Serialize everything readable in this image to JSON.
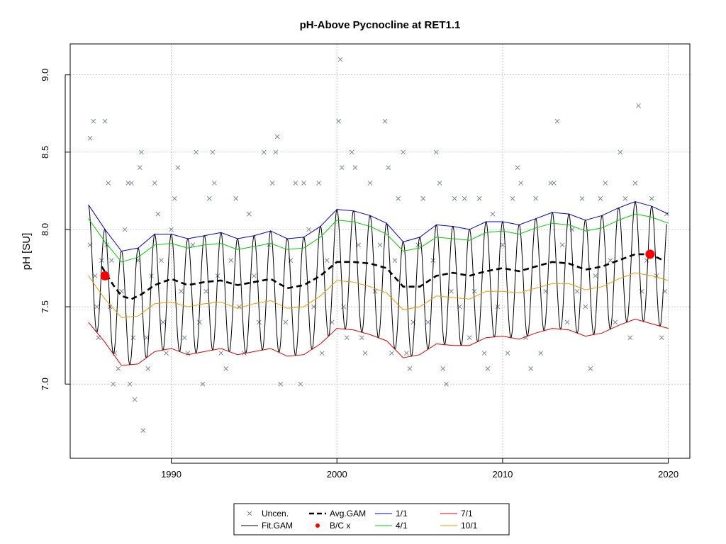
{
  "chart_data": {
    "type": "scatter",
    "title": "pH-Above Pycnocline at RET1.1",
    "xlabel": "",
    "ylabel": "pH [SU]",
    "xlim": [
      1983.9,
      2021.3
    ],
    "ylim": [
      6.52,
      9.2
    ],
    "x_ticks": [
      1990,
      2000,
      2010,
      2020
    ],
    "y_ticks": [
      7.0,
      7.5,
      8.0,
      8.5,
      9.0
    ],
    "grid": true,
    "legend_position": "bottom",
    "colors": {
      "uncen": "#7a8699",
      "fit": "#000000",
      "avg": "#000000",
      "bc": "#ff0000",
      "jan1": "#0000cc",
      "apr1": "#00cc00",
      "jul1": "#dd0000",
      "oct1": "#ee9900"
    },
    "legend": [
      {
        "key": "uncen",
        "label": "Uncen.",
        "symbol": "cross"
      },
      {
        "key": "avg",
        "label": "Avg.GAM",
        "symbol": "dash"
      },
      {
        "key": "jan1",
        "label": "1/1",
        "symbol": "line"
      },
      {
        "key": "jul1",
        "label": "7/1",
        "symbol": "line"
      },
      {
        "key": "fit",
        "label": "Fit.GAM",
        "symbol": "line"
      },
      {
        "key": "bc",
        "label": "B/C x",
        "symbol": "dot"
      },
      {
        "key": "apr1",
        "label": "4/1",
        "symbol": "line"
      },
      {
        "key": "oct1",
        "label": "10/1",
        "symbol": "line"
      }
    ],
    "bc_points": [
      [
        1986.0,
        7.7
      ],
      [
        2018.9,
        7.84
      ]
    ],
    "avg_gam": [
      [
        1985.8,
        7.76
      ],
      [
        1986.5,
        7.64
      ],
      [
        1987.0,
        7.57
      ],
      [
        1987.6,
        7.55
      ],
      [
        1988.2,
        7.58
      ],
      [
        1989.0,
        7.64
      ],
      [
        1990.0,
        7.68
      ],
      [
        1991.0,
        7.64
      ],
      [
        1992.0,
        7.66
      ],
      [
        1993.0,
        7.67
      ],
      [
        1994.0,
        7.64
      ],
      [
        1995.0,
        7.66
      ],
      [
        1996.0,
        7.68
      ],
      [
        1997.0,
        7.62
      ],
      [
        1998.0,
        7.64
      ],
      [
        1999.0,
        7.7
      ],
      [
        2000.0,
        7.79
      ],
      [
        2001.0,
        7.79
      ],
      [
        2002.0,
        7.78
      ],
      [
        2003.0,
        7.75
      ],
      [
        2004.0,
        7.63
      ],
      [
        2005.0,
        7.63
      ],
      [
        2006.0,
        7.7
      ],
      [
        2007.0,
        7.72
      ],
      [
        2008.0,
        7.7
      ],
      [
        2009.0,
        7.73
      ],
      [
        2010.0,
        7.75
      ],
      [
        2011.0,
        7.73
      ],
      [
        2012.0,
        7.76
      ],
      [
        2013.0,
        7.79
      ],
      [
        2014.0,
        7.78
      ],
      [
        2015.0,
        7.74
      ],
      [
        2016.0,
        7.76
      ],
      [
        2017.0,
        7.8
      ],
      [
        2018.0,
        7.84
      ],
      [
        2018.9,
        7.84
      ],
      [
        2019.7,
        7.8
      ]
    ],
    "jan1": [
      [
        1985.0,
        8.16
      ],
      [
        1986.0,
        8.0
      ],
      [
        1987.0,
        7.86
      ],
      [
        1988.0,
        7.88
      ],
      [
        1989.0,
        7.97
      ],
      [
        1990.0,
        7.97
      ],
      [
        1991.0,
        7.94
      ],
      [
        1992.0,
        7.96
      ],
      [
        1993.0,
        7.98
      ],
      [
        1994.0,
        7.94
      ],
      [
        1995.0,
        7.96
      ],
      [
        1996.0,
        7.99
      ],
      [
        1997.0,
        7.94
      ],
      [
        1998.0,
        7.95
      ],
      [
        1999.0,
        8.02
      ],
      [
        2000.0,
        8.13
      ],
      [
        2001.0,
        8.12
      ],
      [
        2002.0,
        8.09
      ],
      [
        2003.0,
        8.04
      ],
      [
        2004.0,
        7.92
      ],
      [
        2005.0,
        7.95
      ],
      [
        2006.0,
        8.03
      ],
      [
        2007.0,
        8.02
      ],
      [
        2008.0,
        8.0
      ],
      [
        2009.0,
        8.05
      ],
      [
        2010.0,
        8.05
      ],
      [
        2011.0,
        8.03
      ],
      [
        2012.0,
        8.07
      ],
      [
        2013.0,
        8.11
      ],
      [
        2014.0,
        8.1
      ],
      [
        2015.0,
        8.06
      ],
      [
        2016.0,
        8.09
      ],
      [
        2017.0,
        8.14
      ],
      [
        2018.0,
        8.18
      ],
      [
        2019.0,
        8.15
      ],
      [
        2020.0,
        8.1
      ]
    ],
    "apr1": [
      [
        1985.0,
        8.07
      ],
      [
        1986.0,
        7.92
      ],
      [
        1987.0,
        7.79
      ],
      [
        1988.0,
        7.82
      ],
      [
        1989.0,
        7.9
      ],
      [
        1990.0,
        7.91
      ],
      [
        1991.0,
        7.88
      ],
      [
        1992.0,
        7.9
      ],
      [
        1993.0,
        7.91
      ],
      [
        1994.0,
        7.87
      ],
      [
        1995.0,
        7.89
      ],
      [
        1996.0,
        7.91
      ],
      [
        1997.0,
        7.87
      ],
      [
        1998.0,
        7.88
      ],
      [
        1999.0,
        7.95
      ],
      [
        2000.0,
        8.06
      ],
      [
        2001.0,
        8.05
      ],
      [
        2002.0,
        8.02
      ],
      [
        2003.0,
        7.97
      ],
      [
        2004.0,
        7.86
      ],
      [
        2005.0,
        7.88
      ],
      [
        2006.0,
        7.95
      ],
      [
        2007.0,
        7.94
      ],
      [
        2008.0,
        7.93
      ],
      [
        2009.0,
        7.98
      ],
      [
        2010.0,
        7.99
      ],
      [
        2011.0,
        7.97
      ],
      [
        2012.0,
        8.01
      ],
      [
        2013.0,
        8.04
      ],
      [
        2014.0,
        8.03
      ],
      [
        2015.0,
        7.99
      ],
      [
        2016.0,
        8.01
      ],
      [
        2017.0,
        8.06
      ],
      [
        2018.0,
        8.1
      ],
      [
        2019.0,
        8.08
      ],
      [
        2020.0,
        8.04
      ]
    ],
    "oct1": [
      [
        1985.0,
        7.7
      ],
      [
        1986.0,
        7.55
      ],
      [
        1987.0,
        7.43
      ],
      [
        1988.0,
        7.44
      ],
      [
        1989.0,
        7.52
      ],
      [
        1990.0,
        7.53
      ],
      [
        1991.0,
        7.5
      ],
      [
        1992.0,
        7.52
      ],
      [
        1993.0,
        7.53
      ],
      [
        1994.0,
        7.49
      ],
      [
        1995.0,
        7.52
      ],
      [
        1996.0,
        7.54
      ],
      [
        1997.0,
        7.49
      ],
      [
        1998.0,
        7.5
      ],
      [
        1999.0,
        7.57
      ],
      [
        2000.0,
        7.67
      ],
      [
        2001.0,
        7.66
      ],
      [
        2002.0,
        7.63
      ],
      [
        2003.0,
        7.59
      ],
      [
        2004.0,
        7.48
      ],
      [
        2005.0,
        7.5
      ],
      [
        2006.0,
        7.57
      ],
      [
        2007.0,
        7.56
      ],
      [
        2008.0,
        7.55
      ],
      [
        2009.0,
        7.6
      ],
      [
        2010.0,
        7.6
      ],
      [
        2011.0,
        7.59
      ],
      [
        2012.0,
        7.62
      ],
      [
        2013.0,
        7.65
      ],
      [
        2014.0,
        7.65
      ],
      [
        2015.0,
        7.61
      ],
      [
        2016.0,
        7.63
      ],
      [
        2017.0,
        7.68
      ],
      [
        2018.0,
        7.72
      ],
      [
        2019.0,
        7.7
      ],
      [
        2020.0,
        7.67
      ]
    ],
    "jul1": [
      [
        1985.0,
        7.4
      ],
      [
        1986.0,
        7.27
      ],
      [
        1987.0,
        7.12
      ],
      [
        1988.0,
        7.13
      ],
      [
        1989.0,
        7.21
      ],
      [
        1990.0,
        7.23
      ],
      [
        1991.0,
        7.19
      ],
      [
        1992.0,
        7.21
      ],
      [
        1993.0,
        7.23
      ],
      [
        1994.0,
        7.19
      ],
      [
        1995.0,
        7.21
      ],
      [
        1996.0,
        7.23
      ],
      [
        1997.0,
        7.18
      ],
      [
        1998.0,
        7.19
      ],
      [
        1999.0,
        7.26
      ],
      [
        2000.0,
        7.36
      ],
      [
        2001.0,
        7.35
      ],
      [
        2002.0,
        7.32
      ],
      [
        2003.0,
        7.28
      ],
      [
        2004.0,
        7.17
      ],
      [
        2005.0,
        7.19
      ],
      [
        2006.0,
        7.26
      ],
      [
        2007.0,
        7.25
      ],
      [
        2008.0,
        7.25
      ],
      [
        2009.0,
        7.3
      ],
      [
        2010.0,
        7.31
      ],
      [
        2011.0,
        7.29
      ],
      [
        2012.0,
        7.33
      ],
      [
        2013.0,
        7.36
      ],
      [
        2014.0,
        7.35
      ],
      [
        2015.0,
        7.31
      ],
      [
        2016.0,
        7.33
      ],
      [
        2017.0,
        7.38
      ],
      [
        2018.0,
        7.42
      ],
      [
        2019.0,
        7.39
      ],
      [
        2020.0,
        7.36
      ]
    ],
    "uncen_points": [
      [
        1985.1,
        8.59
      ],
      [
        1985.3,
        8.7
      ],
      [
        1985.1,
        7.9
      ],
      [
        1985.4,
        7.7
      ],
      [
        1985.6,
        7.3
      ],
      [
        1985.8,
        7.8
      ],
      [
        1985.5,
        7.5
      ],
      [
        1986.0,
        8.7
      ],
      [
        1986.2,
        8.3
      ],
      [
        1986.1,
        7.9
      ],
      [
        1986.4,
        7.8
      ],
      [
        1986.3,
        7.5
      ],
      [
        1986.6,
        7.2
      ],
      [
        1986.5,
        7.0
      ],
      [
        1986.8,
        7.1
      ],
      [
        1987.0,
        7.6
      ],
      [
        1987.2,
        8.0
      ],
      [
        1987.4,
        8.3
      ],
      [
        1987.6,
        8.3
      ],
      [
        1987.5,
        7.0
      ],
      [
        1987.8,
        6.9
      ],
      [
        1987.7,
        7.3
      ],
      [
        1988.0,
        7.8
      ],
      [
        1988.1,
        8.4
      ],
      [
        1988.2,
        8.5
      ],
      [
        1988.3,
        6.7
      ],
      [
        1988.5,
        7.3
      ],
      [
        1988.6,
        7.1
      ],
      [
        1988.8,
        7.7
      ],
      [
        1989.0,
        8.3
      ],
      [
        1989.2,
        8.1
      ],
      [
        1989.4,
        7.8
      ],
      [
        1989.5,
        7.4
      ],
      [
        1989.7,
        7.2
      ],
      [
        1990.0,
        8.0
      ],
      [
        1990.2,
        8.2
      ],
      [
        1990.4,
        8.4
      ],
      [
        1990.6,
        7.6
      ],
      [
        1990.8,
        7.3
      ],
      [
        1991.0,
        7.2
      ],
      [
        1991.3,
        7.9
      ],
      [
        1991.5,
        8.5
      ],
      [
        1991.7,
        7.4
      ],
      [
        1991.9,
        7.0
      ],
      [
        1992.1,
        7.6
      ],
      [
        1992.3,
        8.2
      ],
      [
        1992.5,
        8.5
      ],
      [
        1992.6,
        8.3
      ],
      [
        1992.8,
        7.7
      ],
      [
        1993.0,
        7.2
      ],
      [
        1993.3,
        7.1
      ],
      [
        1993.6,
        7.8
      ],
      [
        1993.9,
        8.2
      ],
      [
        1994.1,
        7.5
      ],
      [
        1994.4,
        7.2
      ],
      [
        1994.7,
        8.1
      ],
      [
        1995.0,
        7.7
      ],
      [
        1995.3,
        7.4
      ],
      [
        1995.6,
        8.5
      ],
      [
        1995.9,
        7.9
      ],
      [
        1996.1,
        8.3
      ],
      [
        1996.3,
        8.5
      ],
      [
        1996.4,
        8.6
      ],
      [
        1996.6,
        7.0
      ],
      [
        1996.9,
        7.4
      ],
      [
        1997.2,
        7.8
      ],
      [
        1997.5,
        8.3
      ],
      [
        1997.8,
        7.0
      ],
      [
        1998.0,
        8.3
      ],
      [
        1998.3,
        8.0
      ],
      [
        1998.6,
        7.5
      ],
      [
        1998.9,
        8.3
      ],
      [
        1999.1,
        7.2
      ],
      [
        1999.4,
        7.8
      ],
      [
        1999.7,
        7.4
      ],
      [
        2000.1,
        8.7
      ],
      [
        2000.2,
        9.1
      ],
      [
        2000.3,
        8.4
      ],
      [
        2000.4,
        7.5
      ],
      [
        2000.6,
        7.3
      ],
      [
        2000.9,
        8.5
      ],
      [
        2001.1,
        8.4
      ],
      [
        2001.3,
        7.9
      ],
      [
        2001.5,
        7.3
      ],
      [
        2001.7,
        7.2
      ],
      [
        2002.0,
        8.3
      ],
      [
        2002.3,
        7.6
      ],
      [
        2002.6,
        7.9
      ],
      [
        2002.9,
        8.7
      ],
      [
        2003.1,
        8.4
      ],
      [
        2003.3,
        7.2
      ],
      [
        2003.5,
        7.8
      ],
      [
        2003.7,
        8.2
      ],
      [
        2004.0,
        8.5
      ],
      [
        2004.2,
        7.2
      ],
      [
        2004.4,
        7.1
      ],
      [
        2004.6,
        7.4
      ],
      [
        2004.9,
        7.9
      ],
      [
        2005.2,
        8.2
      ],
      [
        2005.5,
        7.4
      ],
      [
        2005.8,
        7.8
      ],
      [
        2006.0,
        8.5
      ],
      [
        2006.2,
        8.3
      ],
      [
        2006.4,
        7.1
      ],
      [
        2006.6,
        7.0
      ],
      [
        2006.9,
        7.6
      ],
      [
        2007.1,
        8.2
      ],
      [
        2007.4,
        7.5
      ],
      [
        2007.7,
        8.2
      ],
      [
        2008.0,
        7.3
      ],
      [
        2008.3,
        7.6
      ],
      [
        2008.6,
        8.2
      ],
      [
        2008.9,
        7.2
      ],
      [
        2009.1,
        7.1
      ],
      [
        2009.4,
        8.1
      ],
      [
        2009.7,
        7.5
      ],
      [
        2010.0,
        7.9
      ],
      [
        2010.3,
        7.2
      ],
      [
        2010.6,
        8.2
      ],
      [
        2010.9,
        8.4
      ],
      [
        2011.1,
        8.3
      ],
      [
        2011.4,
        7.3
      ],
      [
        2011.7,
        7.1
      ],
      [
        2012.0,
        8.2
      ],
      [
        2012.3,
        7.2
      ],
      [
        2012.6,
        7.6
      ],
      [
        2012.9,
        8.3
      ],
      [
        2013.1,
        8.3
      ],
      [
        2013.3,
        8.7
      ],
      [
        2013.6,
        7.9
      ],
      [
        2013.9,
        7.4
      ],
      [
        2014.2,
        8.0
      ],
      [
        2014.5,
        7.6
      ],
      [
        2014.8,
        8.2
      ],
      [
        2015.0,
        7.5
      ],
      [
        2015.3,
        7.1
      ],
      [
        2015.6,
        7.7
      ],
      [
        2015.9,
        8.2
      ],
      [
        2016.2,
        8.3
      ],
      [
        2016.5,
        7.8
      ],
      [
        2016.8,
        7.4
      ],
      [
        2017.1,
        8.5
      ],
      [
        2017.4,
        8.2
      ],
      [
        2017.7,
        7.3
      ],
      [
        2018.0,
        8.3
      ],
      [
        2018.2,
        8.8
      ],
      [
        2018.4,
        7.6
      ],
      [
        2018.7,
        7.8
      ],
      [
        2019.0,
        8.2
      ],
      [
        2019.3,
        7.7
      ],
      [
        2019.6,
        7.3
      ],
      [
        2019.8,
        7.6
      ],
      [
        2019.9,
        8.1
      ]
    ]
  }
}
